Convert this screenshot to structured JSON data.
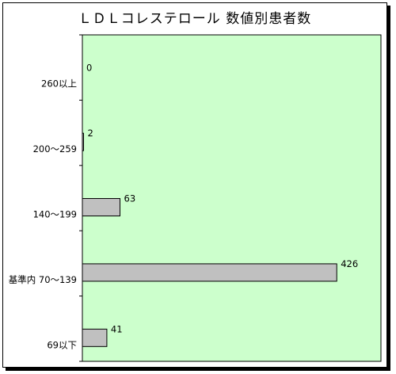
{
  "chart_data": {
    "type": "bar",
    "orientation": "horizontal",
    "title": "ＬＤＬコレステロール 数値別患者数",
    "categories": [
      "260以上",
      "200～259",
      "140～199",
      "基準内 70～139",
      "69以下"
    ],
    "values": [
      0,
      2,
      63,
      426,
      41
    ],
    "xlim": [
      0,
      500
    ],
    "grid": false,
    "legend": "none",
    "colors": {
      "plot_background": "#ccffcc",
      "bar_fill": "#c0c0c0",
      "bar_stroke": "#000000",
      "frame_shadow": "#000000"
    }
  }
}
